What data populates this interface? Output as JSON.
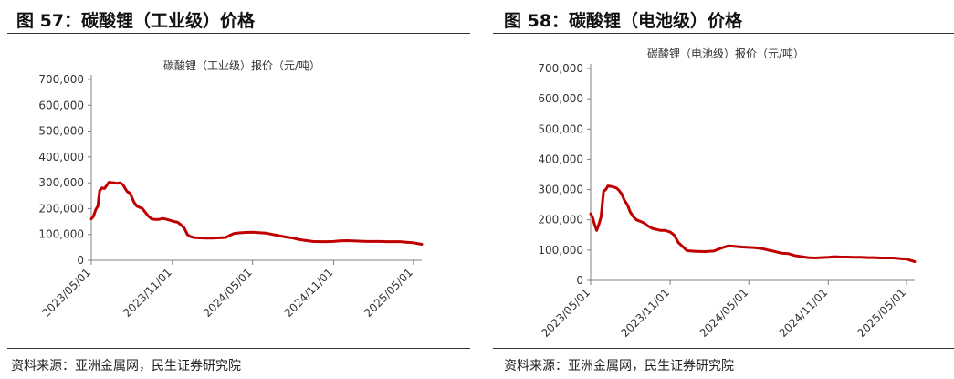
{
  "figures": [
    {
      "figure_title": "图 57：碳酸锂（工业级）价格",
      "source": "资料来源：亚洲金属网，民生证券研究院",
      "colors": {
        "line": "#c00000",
        "axis": "#808080"
      }
    },
    {
      "figure_title": "图 58：碳酸锂（电池级）价格",
      "source": "资料来源：亚洲金属网，民生证券研究院",
      "colors": {
        "line": "#c00000",
        "axis": "#808080"
      }
    }
  ],
  "chart_data": [
    {
      "type": "line",
      "title": "碳酸锂（工业级）报价（元/吨）",
      "xlabel": "",
      "ylabel": "",
      "ylim": [
        0,
        700000
      ],
      "yticks": [
        0,
        100000,
        200000,
        300000,
        400000,
        500000,
        600000,
        700000
      ],
      "ytick_labels": [
        "0",
        "100,000",
        "200,000",
        "300,000",
        "400,000",
        "500,000",
        "600,000",
        "700,000"
      ],
      "xlim": [
        "2023-05-01",
        "2025-05-20"
      ],
      "xticks": [
        "2023-05-01",
        "2023-11-01",
        "2024-05-01",
        "2024-11-01",
        "2025-05-01"
      ],
      "xtick_labels": [
        "2023/05/01",
        "2023/11/01",
        "2024/05/01",
        "2024/11/01",
        "2025/05/01"
      ],
      "grid": false,
      "series": [
        {
          "name": "",
          "x": [
            "2023-05-01",
            "2023-05-06",
            "2023-05-11",
            "2023-05-16",
            "2023-05-20",
            "2023-05-25",
            "2023-05-31",
            "2023-06-05",
            "2023-06-10",
            "2023-06-20",
            "2023-06-30",
            "2023-07-05",
            "2023-07-12",
            "2023-07-18",
            "2023-07-22",
            "2023-07-28",
            "2023-08-02",
            "2023-08-06",
            "2023-08-12",
            "2023-08-18",
            "2023-08-25",
            "2023-09-01",
            "2023-09-08",
            "2023-09-15",
            "2023-09-22",
            "2023-10-01",
            "2023-10-10",
            "2023-10-15",
            "2023-10-22",
            "2023-10-30",
            "2023-11-05",
            "2023-11-12",
            "2023-11-20",
            "2023-11-28",
            "2023-12-05",
            "2023-12-12",
            "2023-12-20",
            "2023-12-28",
            "2024-01-15",
            "2024-02-01",
            "2024-02-15",
            "2024-03-01",
            "2024-03-10",
            "2024-03-20",
            "2024-04-01",
            "2024-04-15",
            "2024-05-01",
            "2024-05-15",
            "2024-06-01",
            "2024-06-15",
            "2024-07-01",
            "2024-07-15",
            "2024-08-01",
            "2024-08-15",
            "2024-09-01",
            "2024-09-15",
            "2024-10-01",
            "2024-10-15",
            "2024-11-01",
            "2024-11-15",
            "2024-12-01",
            "2024-12-15",
            "2025-01-01",
            "2025-01-15",
            "2025-02-01",
            "2025-02-15",
            "2025-03-01",
            "2025-03-15",
            "2025-04-01",
            "2025-04-15",
            "2025-05-01",
            "2025-05-10",
            "2025-05-20"
          ],
          "y": [
            160000,
            170000,
            195000,
            210000,
            270000,
            280000,
            278000,
            290000,
            302000,
            300000,
            298000,
            300000,
            292000,
            275000,
            265000,
            260000,
            240000,
            225000,
            210000,
            205000,
            200000,
            185000,
            170000,
            160000,
            158000,
            158000,
            162000,
            160000,
            157000,
            153000,
            150000,
            148000,
            138000,
            125000,
            100000,
            92000,
            88000,
            87000,
            86000,
            86000,
            87000,
            88000,
            96000,
            104000,
            106000,
            108000,
            109000,
            107000,
            105000,
            100000,
            95000,
            90000,
            86000,
            80000,
            76000,
            73000,
            72000,
            72000,
            73000,
            75000,
            76000,
            75000,
            74000,
            73000,
            73000,
            73000,
            72000,
            72000,
            72000,
            70000,
            68000,
            65000,
            62000
          ]
        }
      ]
    },
    {
      "type": "line",
      "title": "碳酸锂（电池级）报价（元/吨）",
      "xlabel": "",
      "ylabel": "",
      "ylim": [
        0,
        700000
      ],
      "yticks": [
        0,
        100000,
        200000,
        300000,
        400000,
        500000,
        600000,
        700000
      ],
      "ytick_labels": [
        "0",
        "100,000",
        "200,000",
        "300,000",
        "400,000",
        "500,000",
        "600,000",
        "700,000"
      ],
      "xlim": [
        "2023-05-01",
        "2025-05-20"
      ],
      "xticks": [
        "2023-05-01",
        "2023-11-01",
        "2024-05-01",
        "2024-11-01",
        "2025-05-01"
      ],
      "xtick_labels": [
        "2023/05/01",
        "2023/11/01",
        "2024/05/01",
        "2024/11/01",
        "2025/05/01"
      ],
      "grid": false,
      "series": [
        {
          "name": "",
          "x": [
            "2023-05-01",
            "2023-05-05",
            "2023-05-10",
            "2023-05-15",
            "2023-05-20",
            "2023-05-25",
            "2023-05-31",
            "2023-06-05",
            "2023-06-10",
            "2023-06-20",
            "2023-06-30",
            "2023-07-05",
            "2023-07-12",
            "2023-07-18",
            "2023-07-25",
            "2023-08-01",
            "2023-08-08",
            "2023-08-15",
            "2023-08-22",
            "2023-09-01",
            "2023-09-10",
            "2023-09-20",
            "2023-10-01",
            "2023-10-10",
            "2023-10-20",
            "2023-11-01",
            "2023-11-10",
            "2023-11-20",
            "2023-12-01",
            "2023-12-10",
            "2023-12-20",
            "2024-01-01",
            "2024-01-20",
            "2024-02-10",
            "2024-03-01",
            "2024-03-15",
            "2024-04-01",
            "2024-04-15",
            "2024-05-01",
            "2024-05-15",
            "2024-06-01",
            "2024-06-15",
            "2024-07-01",
            "2024-07-15",
            "2024-08-01",
            "2024-08-15",
            "2024-09-01",
            "2024-09-15",
            "2024-10-01",
            "2024-10-15",
            "2024-11-01",
            "2024-11-15",
            "2024-12-01",
            "2024-12-15",
            "2025-01-01",
            "2025-01-15",
            "2025-02-01",
            "2025-02-15",
            "2025-03-01",
            "2025-03-15",
            "2025-04-01",
            "2025-04-15",
            "2025-05-01",
            "2025-05-10",
            "2025-05-20"
          ],
          "y": [
            220000,
            210000,
            185000,
            165000,
            185000,
            210000,
            295000,
            300000,
            312000,
            310000,
            305000,
            298000,
            285000,
            265000,
            250000,
            225000,
            210000,
            200000,
            196000,
            190000,
            180000,
            172000,
            168000,
            165000,
            165000,
            160000,
            150000,
            125000,
            110000,
            98000,
            97000,
            96000,
            95000,
            97000,
            108000,
            114000,
            112000,
            110000,
            109000,
            108000,
            105000,
            100000,
            95000,
            90000,
            88000,
            82000,
            78000,
            75000,
            74000,
            75000,
            76000,
            78000,
            77000,
            77000,
            76000,
            76000,
            75000,
            75000,
            74000,
            74000,
            74000,
            72000,
            70000,
            66000,
            62000
          ]
        }
      ]
    }
  ]
}
